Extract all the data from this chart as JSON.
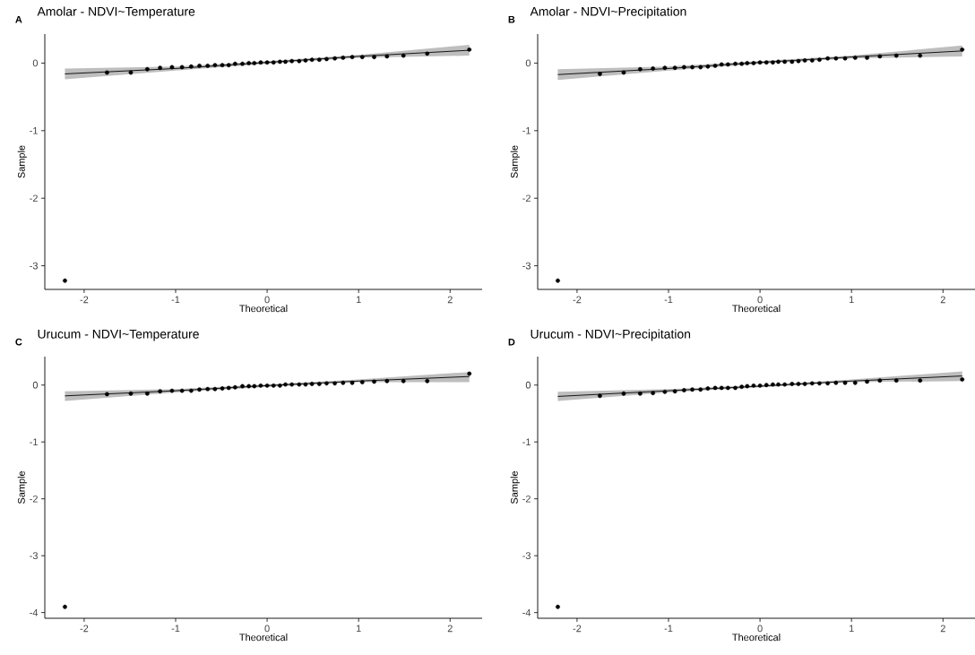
{
  "chart_data": [
    {
      "type": "scatter",
      "title": "Amolar - NDVI~Temperature",
      "xlabel": "Theoretical",
      "ylabel": "Sample",
      "annotations": [
        "A"
      ],
      "xlim": [
        -2.43,
        2.35
      ],
      "ylim": [
        -3.35,
        0.43
      ],
      "xticks": [
        -2,
        -1,
        0,
        1,
        2
      ],
      "yticks": [
        -3,
        -2,
        -1,
        0
      ],
      "series": [
        {
          "type": "line",
          "color": "#000000",
          "x": [
            -2.21,
            -1,
            0,
            1,
            2.21
          ],
          "values": [
            -0.16,
            -0.08,
            0.01,
            0.1,
            0.19
          ],
          "lower": [
            -0.24,
            -0.11,
            -0.01,
            0.08,
            0.11
          ],
          "upper": [
            -0.08,
            -0.05,
            0.03,
            0.12,
            0.27
          ]
        },
        {
          "marker": "circle",
          "color": "#000000",
          "x": [
            -2.21,
            -1.75,
            -1.49,
            -1.31,
            -1.17,
            -1.04,
            -0.93,
            -0.83,
            -0.74,
            -0.65,
            -0.57,
            -0.49,
            -0.42,
            -0.35,
            -0.27,
            -0.2,
            -0.14,
            -0.07,
            0,
            0.07,
            0.14,
            0.2,
            0.27,
            0.35,
            0.42,
            0.49,
            0.57,
            0.65,
            0.74,
            0.83,
            0.93,
            1.04,
            1.17,
            1.31,
            1.49,
            1.75,
            2.21
          ],
          "values": [
            -3.22,
            -0.14,
            -0.14,
            -0.09,
            -0.07,
            -0.06,
            -0.06,
            -0.05,
            -0.04,
            -0.04,
            -0.03,
            -0.03,
            -0.03,
            -0.01,
            -0.01,
            0,
            0,
            0.01,
            0.01,
            0.01,
            0.02,
            0.02,
            0.03,
            0.03,
            0.04,
            0.05,
            0.05,
            0.06,
            0.07,
            0.08,
            0.09,
            0.09,
            0.09,
            0.1,
            0.11,
            0.14,
            0.2
          ]
        }
      ]
    },
    {
      "type": "scatter",
      "title": "Amolar - NDVI~Precipitation",
      "xlabel": "Theoretical",
      "ylabel": "Sample",
      "annotations": [
        "B"
      ],
      "xlim": [
        -2.43,
        2.35
      ],
      "ylim": [
        -3.35,
        0.43
      ],
      "xticks": [
        -2,
        -1,
        0,
        1,
        2
      ],
      "yticks": [
        -3,
        -2,
        -1,
        0
      ],
      "series": [
        {
          "type": "line",
          "color": "#000000",
          "x": [
            -2.21,
            -1,
            0,
            1,
            2.21
          ],
          "values": [
            -0.17,
            -0.08,
            0.01,
            0.09,
            0.18
          ],
          "lower": [
            -0.25,
            -0.11,
            -0.01,
            0.07,
            0.1
          ],
          "upper": [
            -0.09,
            -0.05,
            0.03,
            0.11,
            0.26
          ]
        },
        {
          "marker": "circle",
          "color": "#000000",
          "x": [
            -2.21,
            -1.75,
            -1.49,
            -1.31,
            -1.17,
            -1.04,
            -0.93,
            -0.83,
            -0.74,
            -0.65,
            -0.57,
            -0.49,
            -0.42,
            -0.35,
            -0.27,
            -0.2,
            -0.14,
            -0.07,
            0,
            0.07,
            0.14,
            0.2,
            0.27,
            0.35,
            0.42,
            0.49,
            0.57,
            0.65,
            0.74,
            0.83,
            0.93,
            1.04,
            1.17,
            1.31,
            1.49,
            1.75,
            2.21
          ],
          "values": [
            -3.22,
            -0.16,
            -0.14,
            -0.09,
            -0.08,
            -0.07,
            -0.07,
            -0.06,
            -0.06,
            -0.06,
            -0.05,
            -0.04,
            -0.02,
            -0.02,
            -0.01,
            -0.01,
            0,
            0,
            0.01,
            0.01,
            0.01,
            0.02,
            0.02,
            0.02,
            0.03,
            0.04,
            0.04,
            0.05,
            0.07,
            0.07,
            0.07,
            0.08,
            0.08,
            0.1,
            0.11,
            0.11,
            0.2
          ]
        }
      ]
    },
    {
      "type": "scatter",
      "title": "Urucum - NDVI~Temperature",
      "xlabel": "Theoretical",
      "ylabel": "Sample",
      "annotations": [
        "C"
      ],
      "xlim": [
        -2.43,
        2.35
      ],
      "ylim": [
        -4.1,
        0.5
      ],
      "xticks": [
        -2,
        -1,
        0,
        1,
        2
      ],
      "yticks": [
        -4,
        -3,
        -2,
        -1,
        0
      ],
      "series": [
        {
          "type": "line",
          "color": "#000000",
          "x": [
            -2.21,
            -1,
            0,
            1,
            2.21
          ],
          "values": [
            -0.19,
            -0.1,
            -0.01,
            0.07,
            0.15
          ],
          "lower": [
            -0.28,
            -0.13,
            -0.03,
            0.05,
            0.05
          ],
          "upper": [
            -0.11,
            -0.07,
            0.01,
            0.1,
            0.23
          ]
        },
        {
          "marker": "circle",
          "color": "#000000",
          "x": [
            -2.21,
            -1.75,
            -1.49,
            -1.31,
            -1.17,
            -1.04,
            -0.93,
            -0.83,
            -0.74,
            -0.65,
            -0.57,
            -0.49,
            -0.42,
            -0.35,
            -0.27,
            -0.2,
            -0.14,
            -0.07,
            0,
            0.07,
            0.14,
            0.2,
            0.27,
            0.35,
            0.42,
            0.49,
            0.57,
            0.65,
            0.74,
            0.83,
            0.93,
            1.04,
            1.17,
            1.31,
            1.49,
            1.75,
            2.21
          ],
          "values": [
            -3.9,
            -0.16,
            -0.15,
            -0.15,
            -0.11,
            -0.1,
            -0.1,
            -0.1,
            -0.08,
            -0.07,
            -0.07,
            -0.06,
            -0.05,
            -0.04,
            -0.02,
            -0.02,
            -0.02,
            -0.01,
            -0.01,
            -0.01,
            -0.01,
            0.01,
            0.01,
            0.01,
            0.01,
            0.02,
            0.02,
            0.03,
            0.03,
            0.04,
            0.04,
            0.05,
            0.06,
            0.07,
            0.07,
            0.07,
            0.2
          ]
        }
      ]
    },
    {
      "type": "scatter",
      "title": "Urucum - NDVI~Precipitation",
      "xlabel": "Theoretical",
      "ylabel": "Sample",
      "annotations": [
        "D"
      ],
      "xlim": [
        -2.43,
        2.35
      ],
      "ylim": [
        -4.1,
        0.5
      ],
      "xticks": [
        -2,
        -1,
        0,
        1,
        2
      ],
      "yticks": [
        -4,
        -3,
        -2,
        -1,
        0
      ],
      "series": [
        {
          "type": "line",
          "color": "#000000",
          "x": [
            -2.21,
            -1,
            0,
            1,
            2.21
          ],
          "values": [
            -0.2,
            -0.1,
            -0.02,
            0.07,
            0.16
          ],
          "lower": [
            -0.28,
            -0.13,
            -0.04,
            0.05,
            0.07
          ],
          "upper": [
            -0.12,
            -0.07,
            0,
            0.1,
            0.24
          ]
        },
        {
          "marker": "circle",
          "color": "#000000",
          "x": [
            -2.21,
            -1.75,
            -1.49,
            -1.31,
            -1.17,
            -1.04,
            -0.93,
            -0.83,
            -0.74,
            -0.65,
            -0.57,
            -0.49,
            -0.42,
            -0.35,
            -0.27,
            -0.2,
            -0.14,
            -0.07,
            0,
            0.07,
            0.14,
            0.2,
            0.27,
            0.35,
            0.42,
            0.49,
            0.57,
            0.65,
            0.74,
            0.83,
            0.93,
            1.04,
            1.17,
            1.31,
            1.49,
            1.75,
            2.21
          ],
          "values": [
            -3.9,
            -0.19,
            -0.15,
            -0.15,
            -0.14,
            -0.12,
            -0.11,
            -0.09,
            -0.08,
            -0.08,
            -0.06,
            -0.05,
            -0.05,
            -0.05,
            -0.05,
            -0.03,
            -0.02,
            -0.01,
            -0.01,
            0,
            0.01,
            0.01,
            0.01,
            0.02,
            0.02,
            0.02,
            0.03,
            0.03,
            0.03,
            0.04,
            0.04,
            0.04,
            0.06,
            0.08,
            0.08,
            0.08,
            0.1
          ]
        }
      ]
    }
  ]
}
